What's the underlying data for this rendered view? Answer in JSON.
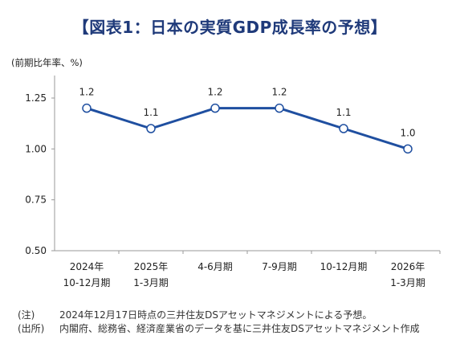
{
  "title": "【図表1：日本の実質GDP成長率の予想】",
  "unit_label": "(前期比年率、%)",
  "notes": [
    {
      "label": "(注)",
      "text": "2024年12月17日時点の三井住友DSアセットマネジメントによる予想。"
    },
    {
      "label": "(出所)",
      "text": "内閣府、総務省、経済産業省のデータを基に三井住友DSアセットマネジメント作成"
    }
  ],
  "colors": {
    "line": "#1f4fa0",
    "title": "#1f3a7a",
    "axis": "#9a9a9a"
  },
  "chart_data": {
    "type": "line",
    "title": "【図表1：日本の実質GDP成長率の予想】",
    "ylabel": "(前期比年率、%)",
    "categories": [
      [
        "2024年",
        "10-12月期"
      ],
      [
        "2025年",
        "1-3月期"
      ],
      [
        "4-6月期"
      ],
      [
        "7-9月期"
      ],
      [
        "10-12月期"
      ],
      [
        "2026年",
        "1-3月期"
      ]
    ],
    "values": [
      1.2,
      1.1,
      1.2,
      1.2,
      1.1,
      1.0
    ],
    "value_labels": [
      "1.2",
      "1.1",
      "1.2",
      "1.2",
      "1.1",
      "1.0"
    ],
    "yticks": [
      "0.50",
      "0.75",
      "1.00",
      "1.25"
    ],
    "ylim": [
      0.5,
      1.25
    ],
    "grid": false,
    "legend": "none"
  }
}
